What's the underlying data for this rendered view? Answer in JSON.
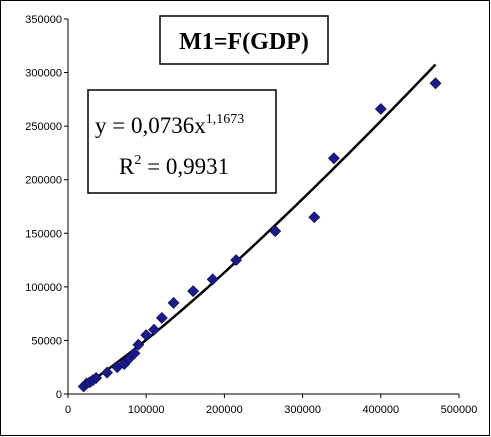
{
  "chart_data": {
    "type": "scatter",
    "title": "M1=F(GDP)",
    "xlabel": "",
    "ylabel": "",
    "xlim": [
      0,
      500000
    ],
    "ylim": [
      0,
      350000
    ],
    "x_ticks": [
      "0",
      "100000",
      "200000",
      "300000",
      "400000",
      "500000"
    ],
    "y_ticks": [
      "0",
      "50000",
      "100000",
      "150000",
      "200000",
      "250000",
      "300000",
      "350000"
    ],
    "series": [
      {
        "marker": "diamond",
        "color": "#1a1a8c",
        "points": [
          {
            "x": 20000,
            "y": 7000
          },
          {
            "x": 24000,
            "y": 10000
          },
          {
            "x": 28000,
            "y": 11000
          },
          {
            "x": 32000,
            "y": 13000
          },
          {
            "x": 36000,
            "y": 15000
          },
          {
            "x": 50000,
            "y": 20000
          },
          {
            "x": 63000,
            "y": 25000
          },
          {
            "x": 72000,
            "y": 28000
          },
          {
            "x": 78000,
            "y": 33000
          },
          {
            "x": 85000,
            "y": 38000
          },
          {
            "x": 90000,
            "y": 46000
          },
          {
            "x": 100000,
            "y": 55000
          },
          {
            "x": 110000,
            "y": 60000
          },
          {
            "x": 120000,
            "y": 71000
          },
          {
            "x": 135000,
            "y": 85000
          },
          {
            "x": 160000,
            "y": 96000
          },
          {
            "x": 185000,
            "y": 107000
          },
          {
            "x": 215000,
            "y": 125000
          },
          {
            "x": 265000,
            "y": 152000
          },
          {
            "x": 315000,
            "y": 165000
          },
          {
            "x": 340000,
            "y": 220000
          },
          {
            "x": 400000,
            "y": 266000
          },
          {
            "x": 470000,
            "y": 290000
          }
        ]
      }
    ],
    "trendline": {
      "type": "power",
      "a": 0.0736,
      "b": 1.1673,
      "x_range": [
        20000,
        470000
      ],
      "color": "#000000"
    },
    "equation": {
      "main": "y = 0,0736x",
      "exponent": "1,1673",
      "r2_prefix": "R",
      "r2_exponent": "2",
      "r2_suffix": " = 0,9931"
    },
    "grid": false,
    "legend": "none"
  }
}
